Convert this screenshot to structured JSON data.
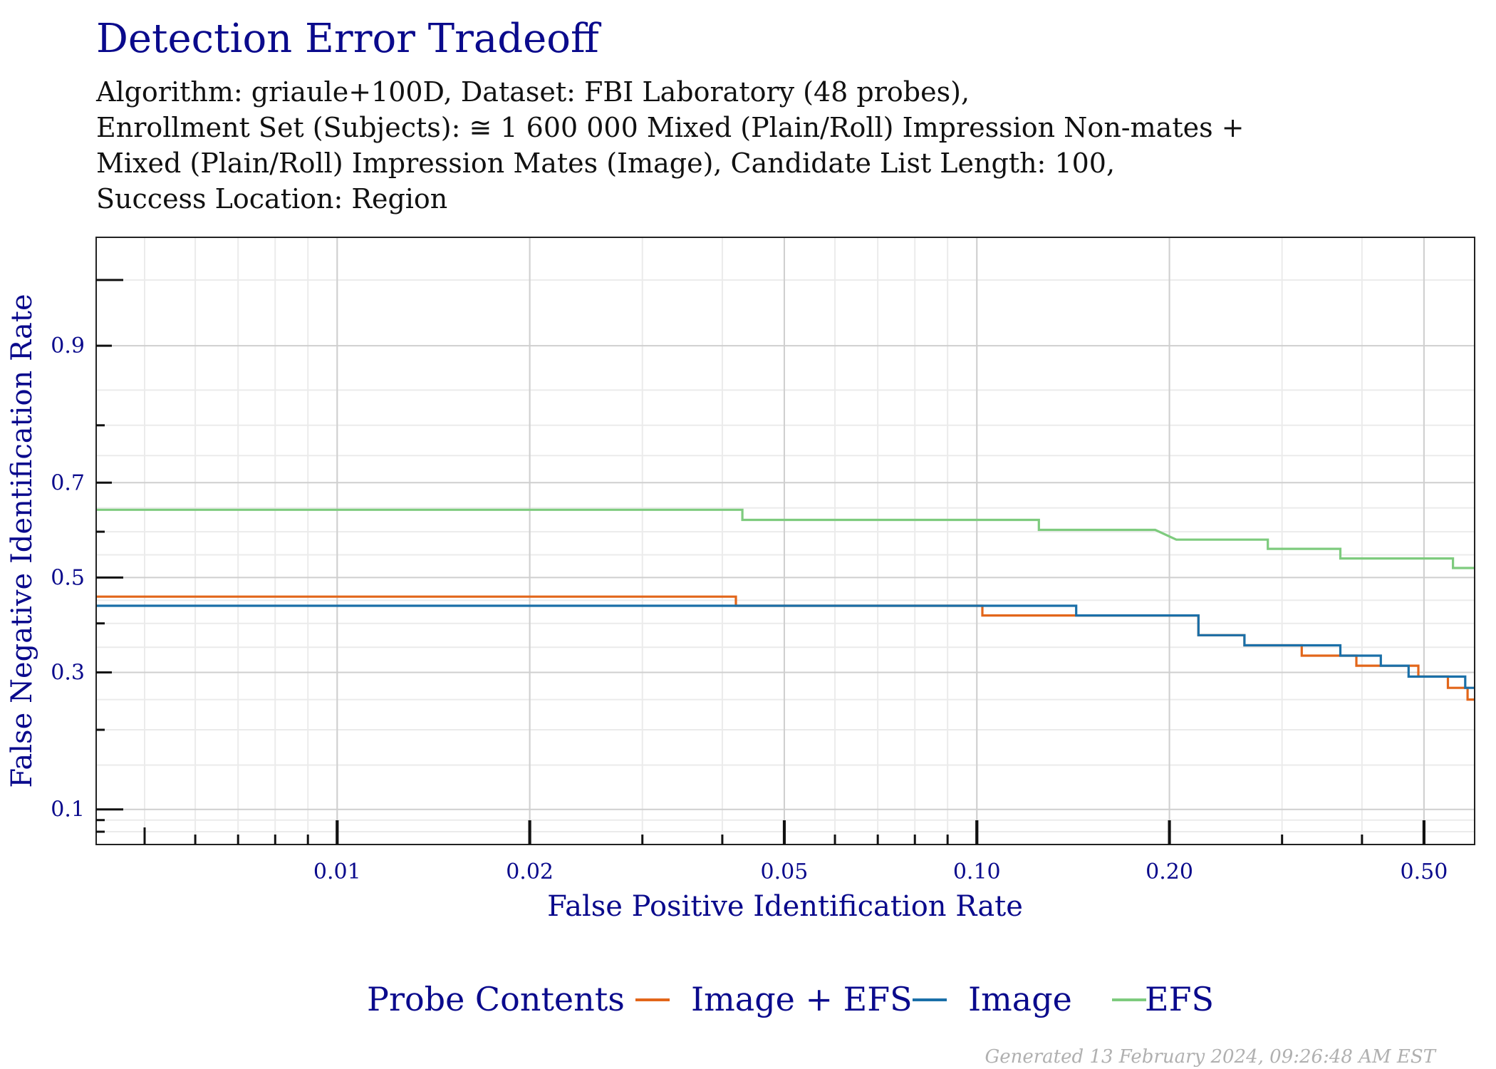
{
  "title": "Detection Error Tradeoff",
  "subtitle_lines": [
    "Algorithm: griaule+100D, Dataset: FBI Laboratory (48 probes),",
    "Enrollment Set (Subjects): ≅ 1 600 000 Mixed (Plain/Roll) Impression Non-mates +",
    "Mixed (Plain/Roll) Impression Mates (Image), Candidate List Length: 100,",
    "Success Location: Region"
  ],
  "footer": "Generated 13 February 2024, 09:26:48 AM EST",
  "chart_data": {
    "type": "line",
    "title": "Detection Error Tradeoff",
    "xlabel": "False Positive Identification Rate",
    "ylabel": "False Negative Identification Rate",
    "x_scale": "log",
    "y_scale": "probit",
    "xlim": [
      0.0042,
      0.6
    ],
    "ylim": [
      0.07,
      0.97
    ],
    "x_ticks": [
      {
        "value": 0.01,
        "label": "0.01"
      },
      {
        "value": 0.02,
        "label": "0.02"
      },
      {
        "value": 0.05,
        "label": "0.05"
      },
      {
        "value": 0.1,
        "label": "0.10"
      },
      {
        "value": 0.2,
        "label": "0.20"
      },
      {
        "value": 0.5,
        "label": "0.50"
      }
    ],
    "y_ticks": [
      {
        "value": 0.1,
        "label": "0.1"
      },
      {
        "value": 0.3,
        "label": "0.3"
      },
      {
        "value": 0.5,
        "label": "0.5"
      },
      {
        "value": 0.7,
        "label": "0.7"
      },
      {
        "value": 0.9,
        "label": "0.9"
      }
    ],
    "grid": true,
    "legend": {
      "title": "Probe Contents",
      "position": "bottom"
    },
    "series": [
      {
        "name": "Image + EFS",
        "color": "#e2661a",
        "points": [
          [
            0.0042,
            0.458
          ],
          [
            0.042,
            0.458
          ],
          [
            0.042,
            0.438
          ],
          [
            0.102,
            0.438
          ],
          [
            0.102,
            0.417
          ],
          [
            0.222,
            0.417
          ],
          [
            0.222,
            0.375
          ],
          [
            0.262,
            0.375
          ],
          [
            0.262,
            0.354
          ],
          [
            0.322,
            0.354
          ],
          [
            0.322,
            0.333
          ],
          [
            0.392,
            0.333
          ],
          [
            0.392,
            0.313
          ],
          [
            0.49,
            0.313
          ],
          [
            0.49,
            0.292
          ],
          [
            0.545,
            0.292
          ],
          [
            0.545,
            0.271
          ],
          [
            0.585,
            0.271
          ],
          [
            0.585,
            0.25
          ],
          [
            0.6,
            0.25
          ]
        ]
      },
      {
        "name": "Image",
        "color": "#1a6fa8",
        "points": [
          [
            0.0042,
            0.438
          ],
          [
            0.143,
            0.438
          ],
          [
            0.143,
            0.417
          ],
          [
            0.222,
            0.417
          ],
          [
            0.222,
            0.375
          ],
          [
            0.262,
            0.375
          ],
          [
            0.262,
            0.354
          ],
          [
            0.37,
            0.354
          ],
          [
            0.37,
            0.333
          ],
          [
            0.428,
            0.333
          ],
          [
            0.428,
            0.313
          ],
          [
            0.473,
            0.313
          ],
          [
            0.473,
            0.292
          ],
          [
            0.58,
            0.292
          ],
          [
            0.58,
            0.271
          ],
          [
            0.6,
            0.271
          ]
        ]
      },
      {
        "name": "EFS",
        "color": "#7ecb7e",
        "points": [
          [
            0.0042,
            0.646
          ],
          [
            0.043,
            0.646
          ],
          [
            0.043,
            0.625
          ],
          [
            0.125,
            0.625
          ],
          [
            0.125,
            0.604
          ],
          [
            0.19,
            0.604
          ],
          [
            0.205,
            0.583
          ],
          [
            0.285,
            0.583
          ],
          [
            0.285,
            0.563
          ],
          [
            0.37,
            0.563
          ],
          [
            0.37,
            0.542
          ],
          [
            0.555,
            0.542
          ],
          [
            0.555,
            0.521
          ],
          [
            0.6,
            0.521
          ]
        ]
      }
    ]
  }
}
